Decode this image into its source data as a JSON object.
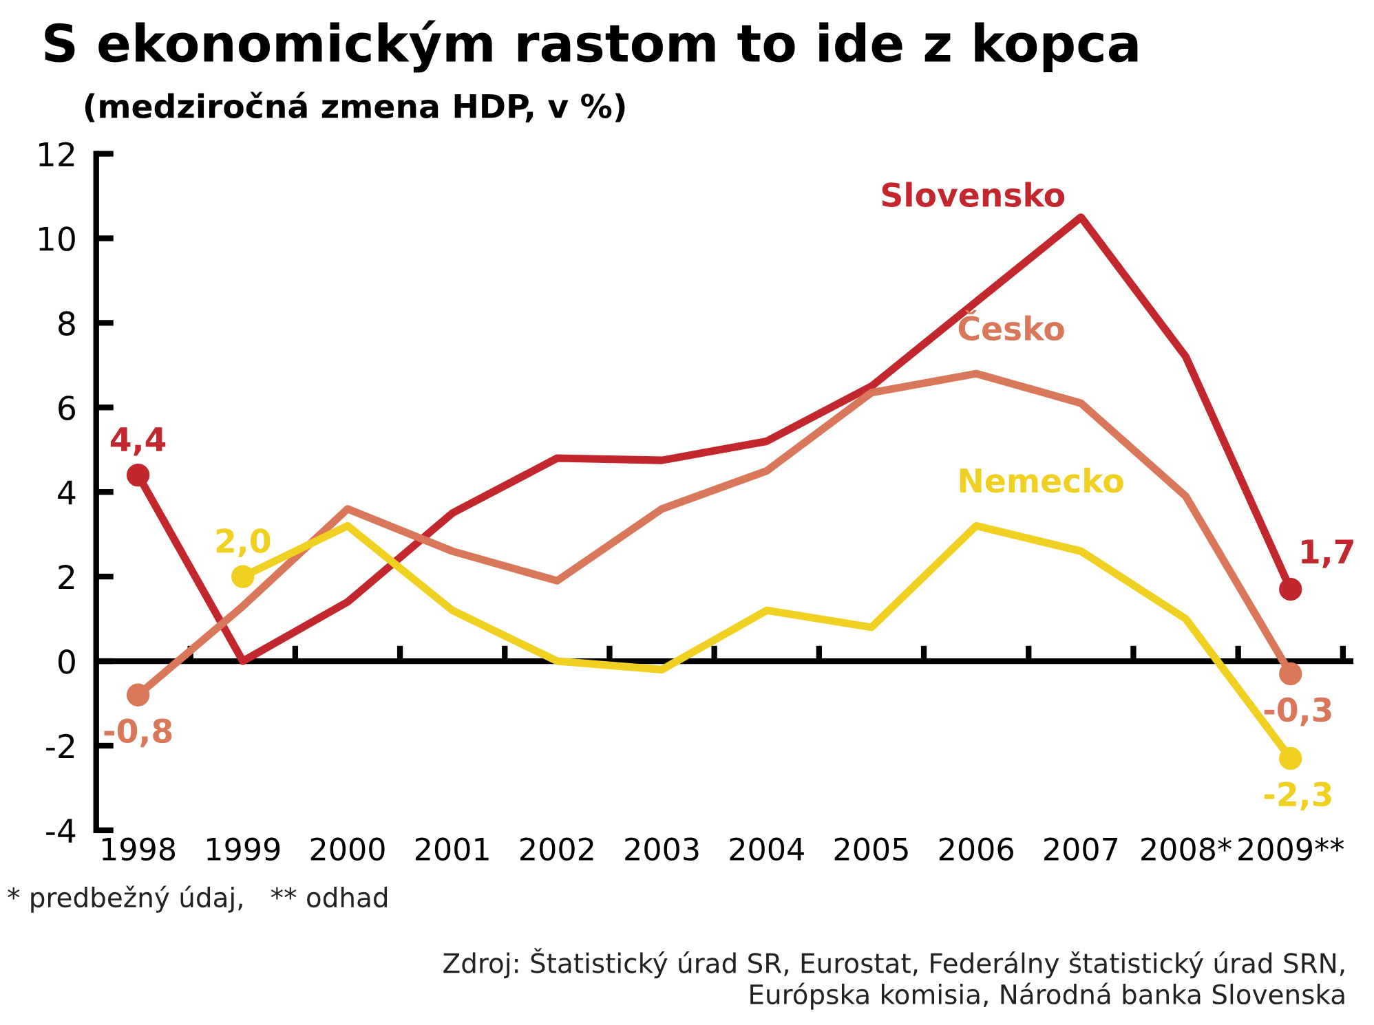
{
  "chart_data": {
    "type": "line",
    "title": "S ekonomickým rastom to ide z kopca",
    "subtitle": "(medziročná zmena HDP, v %)",
    "categories": [
      "1998",
      "1999",
      "2000",
      "2001",
      "2002",
      "2003",
      "2004",
      "2005",
      "2006",
      "2007",
      "2008*",
      "2009**"
    ],
    "series": [
      {
        "name": "Slovensko",
        "color": "#c1272d",
        "values": [
          4.4,
          0.0,
          1.4,
          3.5,
          4.8,
          4.75,
          5.2,
          6.5,
          8.5,
          10.5,
          7.2,
          1.7
        ],
        "value_labels": [
          "4,4",
          null,
          null,
          null,
          null,
          null,
          null,
          null,
          null,
          null,
          null,
          "1,7"
        ]
      },
      {
        "name": "Česko",
        "color": "#d9775a",
        "values": [
          -0.8,
          1.3,
          3.6,
          2.6,
          1.9,
          3.6,
          4.5,
          6.35,
          6.8,
          6.1,
          3.9,
          -0.3
        ],
        "value_labels": [
          "-0,8",
          null,
          null,
          null,
          null,
          null,
          null,
          null,
          null,
          null,
          null,
          "-0,3"
        ]
      },
      {
        "name": "Nemecko",
        "color": "#f0d020",
        "values": [
          null,
          2.0,
          3.2,
          1.2,
          0.0,
          -0.2,
          1.2,
          0.8,
          3.2,
          2.6,
          1.0,
          -2.3
        ],
        "value_labels": [
          null,
          "2,0",
          null,
          null,
          null,
          null,
          null,
          null,
          null,
          null,
          null,
          "-2,3"
        ]
      }
    ],
    "ylim": [
      -4,
      12
    ],
    "yticks": [
      -4,
      -2,
      0,
      2,
      4,
      6,
      8,
      10,
      12
    ],
    "grid": false,
    "legend": false,
    "line_style": "solid",
    "ref_lines": [
      {
        "axis": "y",
        "value": 0
      }
    ],
    "annotations": [
      "* predbežný údaj,   ** odhad",
      "Zdroj: Štatistický úrad SR, Eurostat, Federálny štatistický úrad SRN,\nEurópska komisia, Národná banka Slovenska"
    ]
  }
}
